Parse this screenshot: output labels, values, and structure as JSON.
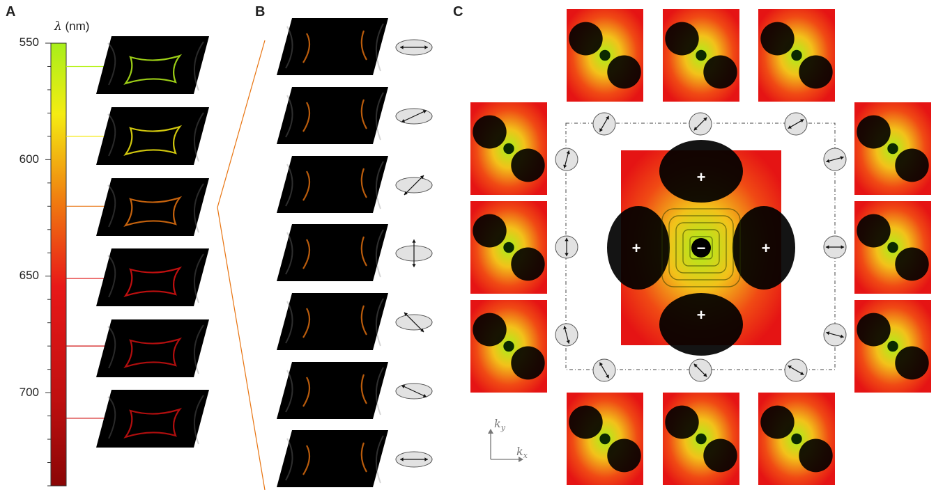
{
  "panels": {
    "a": "A",
    "b": "B",
    "c": "C"
  },
  "colorbar": {
    "unit_symbol": "λ",
    "unit_text": "(nm)",
    "ticks": [
      "550",
      "600",
      "650",
      "700"
    ],
    "wavelength_levels_nm": [
      560,
      590,
      620,
      651,
      680,
      711
    ],
    "level_colors": [
      "#b7f21a",
      "#f6ea10",
      "#e8730f",
      "#e01212",
      "#d01010",
      "#d01010"
    ],
    "gradient_colors": [
      "#a8ef1a",
      "#f4ec12",
      "#f07a10",
      "#e81818",
      "#c01010",
      "#8a0606"
    ]
  },
  "polarizer_b": [
    0,
    25,
    45,
    90,
    -45,
    -25,
    0
  ],
  "panel_c": {
    "top_polarizers": [
      60,
      45,
      30
    ],
    "left_polarizers": [
      75,
      90,
      -75
    ],
    "right_polarizers": [
      15,
      0,
      -15
    ],
    "bottom_polarizers": [
      -60,
      -45,
      -30
    ],
    "center_signs": {
      "top": "+",
      "left": "+",
      "right": "+",
      "bottom": "+",
      "center": "−"
    },
    "axes": {
      "kx": "k",
      "kx_sub": "x",
      "ky": "k",
      "ky_sub": "y"
    }
  }
}
